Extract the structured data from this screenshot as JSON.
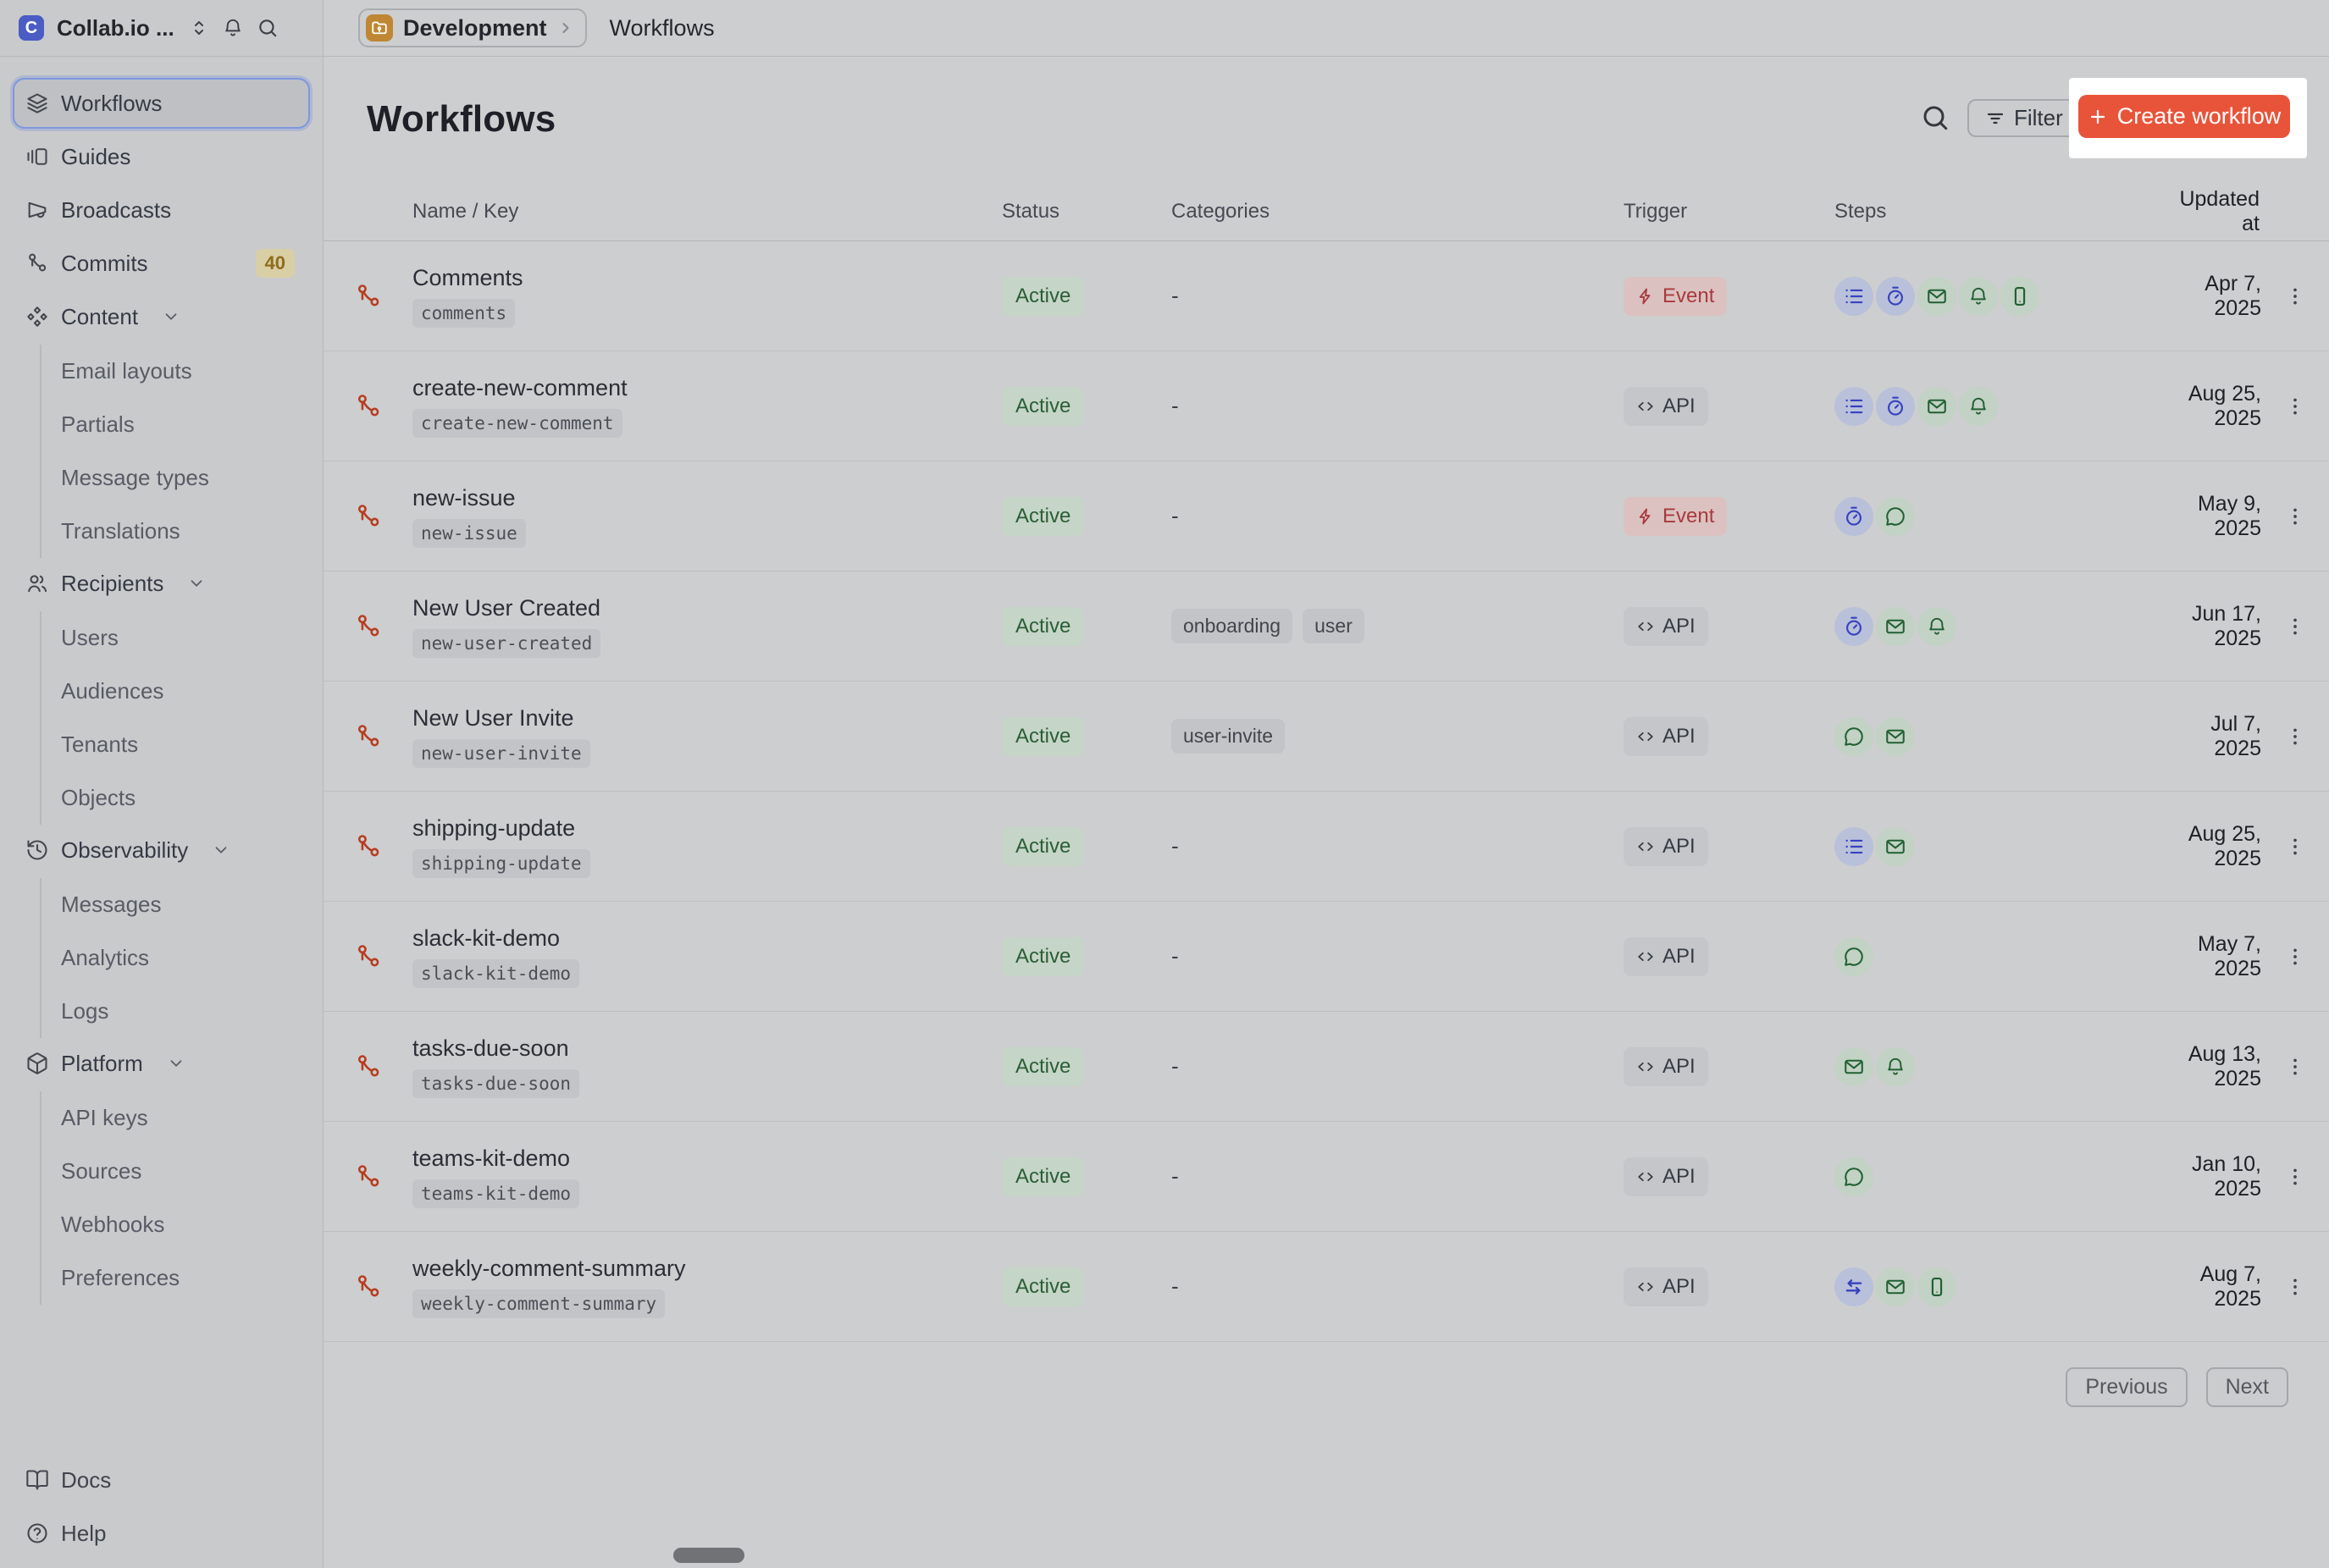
{
  "app": {
    "name": "Collab.io ...",
    "logo_letter": "C"
  },
  "breadcrumb": {
    "project": "Development",
    "page": "Workflows"
  },
  "sidebar": {
    "items": [
      {
        "label": "Workflows",
        "icon": "layers",
        "active": true
      },
      {
        "label": "Guides",
        "icon": "guides"
      },
      {
        "label": "Broadcasts",
        "icon": "megaphone"
      },
      {
        "label": "Commits",
        "icon": "git-branch",
        "badge": "40"
      },
      {
        "label": "Content",
        "icon": "content",
        "expandable": true,
        "children": [
          "Email layouts",
          "Partials",
          "Message types",
          "Translations"
        ]
      },
      {
        "label": "Recipients",
        "icon": "users",
        "expandable": true,
        "children": [
          "Users",
          "Audiences",
          "Tenants",
          "Objects"
        ]
      },
      {
        "label": "Observability",
        "icon": "history",
        "expandable": true,
        "children": [
          "Messages",
          "Analytics",
          "Logs"
        ]
      },
      {
        "label": "Platform",
        "icon": "package",
        "expandable": true,
        "children": [
          "API keys",
          "Sources",
          "Webhooks",
          "Preferences"
        ]
      }
    ],
    "footer": [
      {
        "label": "Docs",
        "icon": "book"
      },
      {
        "label": "Help",
        "icon": "help-circle"
      }
    ]
  },
  "header": {
    "title": "Workflows",
    "filter_label": "Filter",
    "create_label": "Create workflow"
  },
  "table": {
    "columns": [
      "Name / Key",
      "Status",
      "Categories",
      "Trigger",
      "Steps",
      "Updated at"
    ],
    "empty_categories": "-",
    "rows": [
      {
        "name": "Comments",
        "key": "comments",
        "status": "Active",
        "categories": [],
        "trigger": "Event",
        "steps": [
          "list",
          "timer",
          "email",
          "bell",
          "phone"
        ],
        "updated": "Apr 7, 2025"
      },
      {
        "name": "create-new-comment",
        "key": "create-new-comment",
        "status": "Active",
        "categories": [],
        "trigger": "API",
        "steps": [
          "list",
          "timer",
          "email",
          "bell"
        ],
        "updated": "Aug 25, 2025"
      },
      {
        "name": "new-issue",
        "key": "new-issue",
        "status": "Active",
        "categories": [],
        "trigger": "Event",
        "steps": [
          "timer",
          "chat"
        ],
        "updated": "May 9, 2025"
      },
      {
        "name": "New User Created",
        "key": "new-user-created",
        "status": "Active",
        "categories": [
          "onboarding",
          "user"
        ],
        "trigger": "API",
        "steps": [
          "timer",
          "email",
          "bell"
        ],
        "updated": "Jun 17, 2025"
      },
      {
        "name": "New User Invite",
        "key": "new-user-invite",
        "status": "Active",
        "categories": [
          "user-invite"
        ],
        "trigger": "API",
        "steps": [
          "chat",
          "email"
        ],
        "updated": "Jul 7, 2025"
      },
      {
        "name": "shipping-update",
        "key": "shipping-update",
        "status": "Active",
        "categories": [],
        "trigger": "API",
        "steps": [
          "list",
          "email"
        ],
        "updated": "Aug 25, 2025"
      },
      {
        "name": "slack-kit-demo",
        "key": "slack-kit-demo",
        "status": "Active",
        "categories": [],
        "trigger": "API",
        "steps": [
          "chat"
        ],
        "updated": "May 7, 2025"
      },
      {
        "name": "tasks-due-soon",
        "key": "tasks-due-soon",
        "status": "Active",
        "categories": [],
        "trigger": "API",
        "steps": [
          "email",
          "bell"
        ],
        "updated": "Aug 13, 2025"
      },
      {
        "name": "teams-kit-demo",
        "key": "teams-kit-demo",
        "status": "Active",
        "categories": [],
        "trigger": "API",
        "steps": [
          "chat"
        ],
        "updated": "Jan 10, 2025"
      },
      {
        "name": "weekly-comment-summary",
        "key": "weekly-comment-summary",
        "status": "Active",
        "categories": [],
        "trigger": "API",
        "steps": [
          "swap",
          "email",
          "phone"
        ],
        "updated": "Aug 7, 2025"
      }
    ]
  },
  "pagination": {
    "previous": "Previous",
    "next": "Next"
  },
  "colors": {
    "accent": "#e8543a",
    "highlight_box": "#ffffff",
    "status_active_bg": "#c5d5c7",
    "status_active_text": "#2a5e36",
    "trigger_event_bg": "#dbc2c1",
    "trigger_event_text": "#a93a3d",
    "trigger_api_bg": "#c4c6c9",
    "trigger_api_text": "#353b45",
    "step_blue_bg": "#b9c0da",
    "step_blue_icon": "#3642bf",
    "step_green_bg": "#c2d2c4",
    "step_green_icon": "#216033",
    "badge_bg": "#d9cfa5",
    "badge_text": "#8d6c1b",
    "workflow_icon": "#b63d20",
    "folder_chip": "#bf8733",
    "logo_bg": "#4b5cc4"
  }
}
